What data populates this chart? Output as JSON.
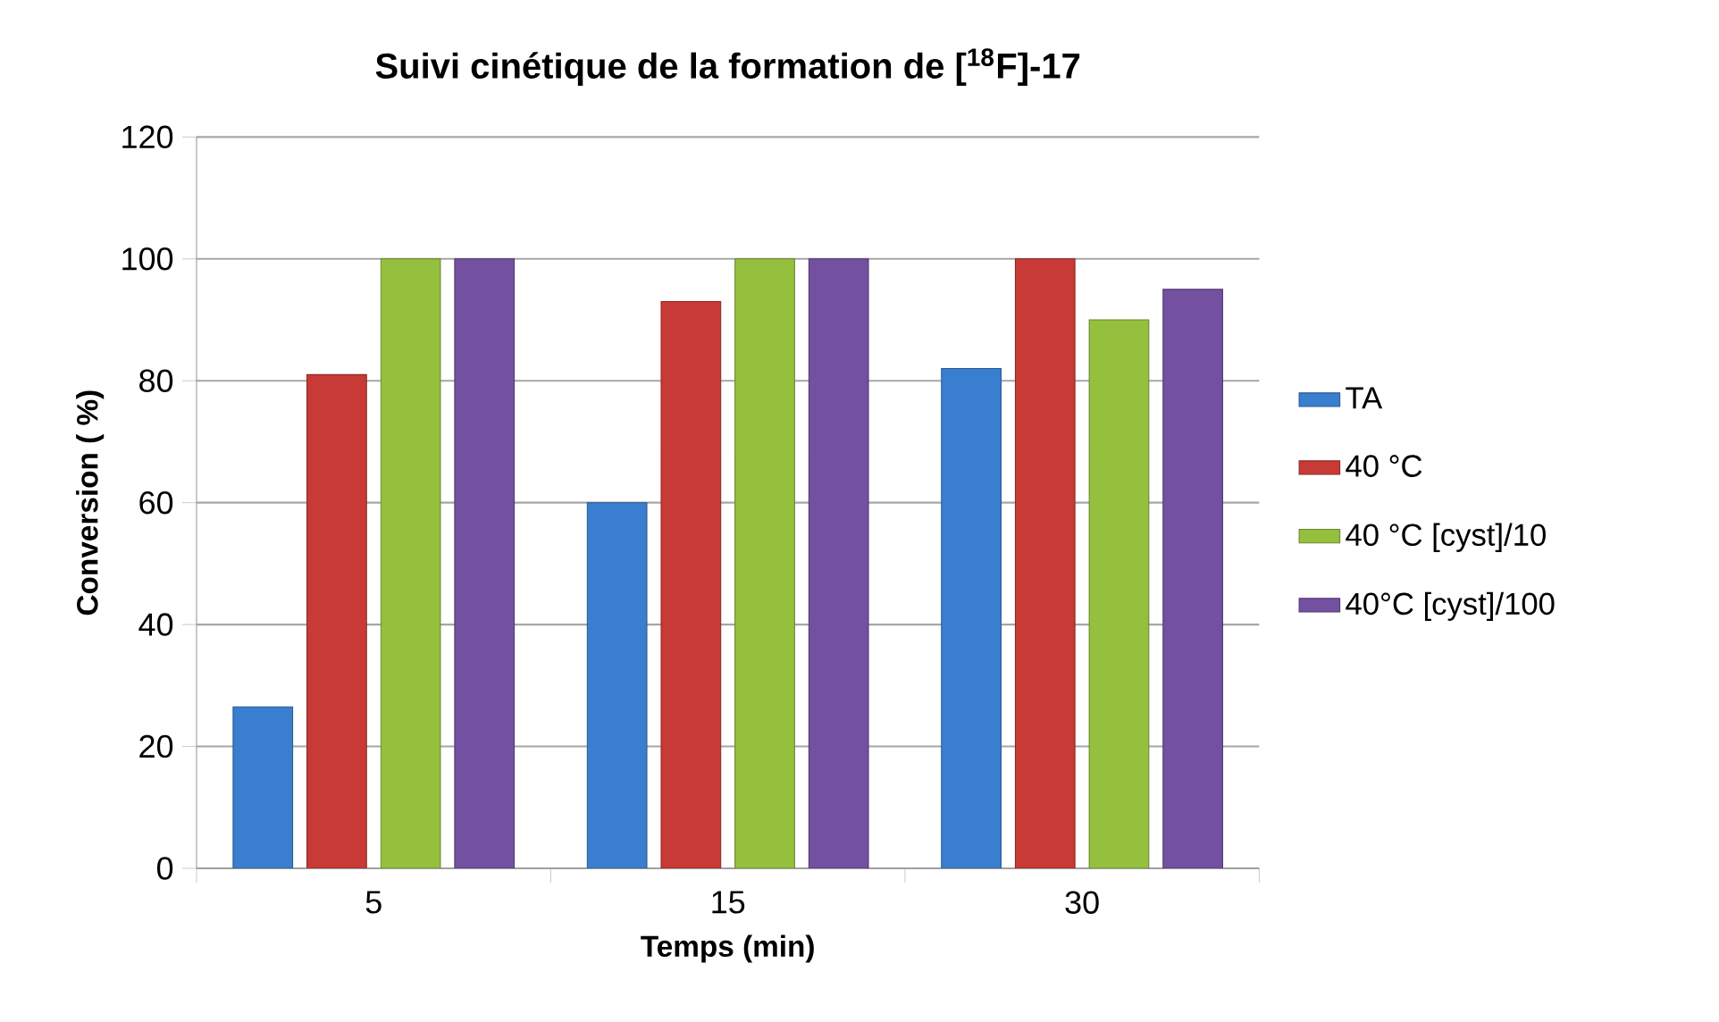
{
  "chart_data": {
    "type": "bar",
    "title": "Suivi cinétique de la formation de [$^{18}$F]-17",
    "xlabel": "Temps (min)",
    "ylabel": "Conversion ( %)",
    "categories": [
      "5",
      "15",
      "30"
    ],
    "series": [
      {
        "name": "TA",
        "color": "#3a7fcf",
        "values": [
          26.5,
          60,
          82
        ]
      },
      {
        "name": "40 °C",
        "color": "#c83a36",
        "values": [
          81,
          93,
          100
        ]
      },
      {
        "name": "40 °C [cyst]/10",
        "color": "#94c03e",
        "values": [
          100,
          100,
          90
        ]
      },
      {
        "name": "40°C [cyst]/100",
        "color": "#7350a0",
        "values": [
          100,
          100,
          95
        ]
      }
    ],
    "ylim": [
      0,
      120
    ],
    "yticks": [
      0,
      20,
      40,
      60,
      80,
      100,
      120
    ],
    "grid": "y",
    "legend": "right"
  }
}
